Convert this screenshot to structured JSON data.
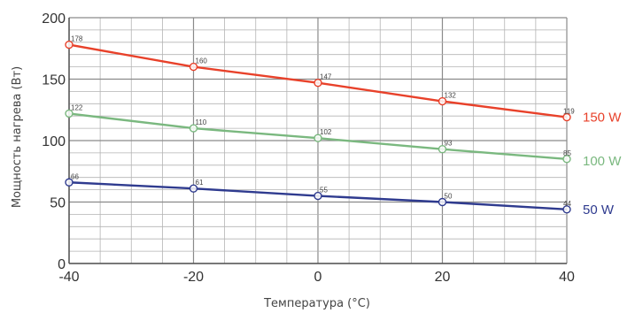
{
  "chart_data": {
    "type": "line",
    "xlabel": "Температура (°C)",
    "ylabel": "Мощность нагрева (Вт)",
    "x": [
      -40,
      -20,
      0,
      20,
      40
    ],
    "xlim": [
      -40,
      40
    ],
    "ylim": [
      0,
      200
    ],
    "xticks": [
      -40,
      -20,
      0,
      20,
      40
    ],
    "yticks": [
      0,
      50,
      100,
      150,
      200
    ],
    "grid": true,
    "legend": "right",
    "series": [
      {
        "name": "150 W",
        "color": "#e8412a",
        "values": [
          178,
          160,
          147,
          132,
          119
        ],
        "labels": [
          "178",
          "160",
          "147",
          "132",
          "119"
        ]
      },
      {
        "name": "100 W",
        "color": "#7ab87f",
        "values": [
          122,
          110,
          102,
          93,
          85
        ],
        "labels": [
          "122",
          "110",
          "102",
          "93",
          "85"
        ]
      },
      {
        "name": "50 W",
        "color": "#2f3b8f",
        "values": [
          66,
          61,
          55,
          50,
          44
        ],
        "labels": [
          "66",
          "61",
          "55",
          "50",
          "44"
        ]
      }
    ]
  }
}
